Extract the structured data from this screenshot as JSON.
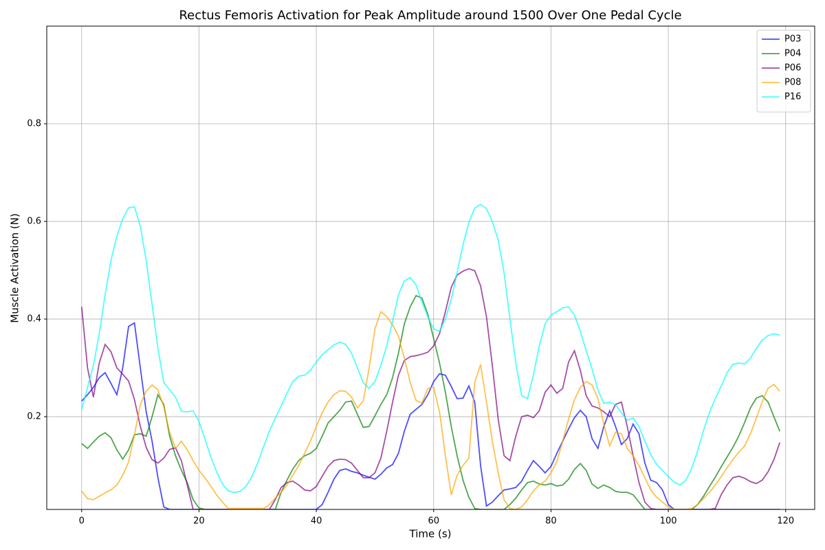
{
  "chart_data": {
    "type": "line",
    "title": "Rectus Femoris Activation for Peak Amplitude around 1500 Over One Pedal Cycle",
    "xlabel": "Time (s)",
    "ylabel": "Muscle Activation (N)",
    "xlim": [
      -5.95,
      124.95
    ],
    "ylim": [
      0.01,
      1.0
    ],
    "xticks": [
      0,
      20,
      40,
      60,
      80,
      100,
      120
    ],
    "yticks": [
      0.2,
      0.4,
      0.6,
      0.8
    ],
    "grid": true,
    "legend": "upper right",
    "line_alpha": 0.7,
    "x": [
      0,
      1,
      2,
      3,
      4,
      5,
      6,
      7,
      8,
      9,
      10,
      11,
      12,
      13,
      14,
      15,
      16,
      17,
      18,
      19,
      20,
      21,
      22,
      23,
      24,
      25,
      26,
      27,
      28,
      29,
      30,
      31,
      32,
      33,
      34,
      35,
      36,
      37,
      38,
      39,
      40,
      41,
      42,
      43,
      44,
      45,
      46,
      47,
      48,
      49,
      50,
      51,
      52,
      53,
      54,
      55,
      56,
      57,
      58,
      59,
      60,
      61,
      62,
      63,
      64,
      65,
      66,
      67,
      68,
      69,
      70,
      71,
      72,
      73,
      74,
      75,
      76,
      77,
      78,
      79,
      80,
      81,
      82,
      83,
      84,
      85,
      86,
      87,
      88,
      89,
      90,
      91,
      92,
      93,
      94,
      95,
      96,
      97,
      98,
      99,
      100,
      101,
      102,
      103,
      104,
      105,
      106,
      107,
      108,
      109,
      110,
      111,
      112,
      113,
      114,
      115,
      116,
      117,
      118,
      119
    ],
    "series": [
      {
        "name": "P03",
        "color": "#0000ff",
        "values": [
          0.232,
          0.245,
          0.26,
          0.28,
          0.29,
          0.268,
          0.245,
          0.3,
          0.385,
          0.392,
          0.3,
          0.21,
          0.15,
          0.075,
          0.015,
          0.01,
          0.01,
          0.01,
          0.01,
          0.01,
          0.01,
          0.01,
          0.01,
          0.01,
          0.01,
          0.01,
          0.01,
          0.01,
          0.01,
          0.01,
          0.01,
          0.01,
          0.01,
          0.01,
          0.01,
          0.01,
          0.01,
          0.01,
          0.01,
          0.01,
          0.01,
          0.02,
          0.045,
          0.072,
          0.09,
          0.093,
          0.088,
          0.085,
          0.08,
          0.076,
          0.072,
          0.082,
          0.095,
          0.102,
          0.125,
          0.17,
          0.205,
          0.215,
          0.225,
          0.245,
          0.272,
          0.288,
          0.285,
          0.262,
          0.237,
          0.238,
          0.263,
          0.23,
          0.1,
          0.017,
          0.025,
          0.038,
          0.05,
          0.052,
          0.055,
          0.068,
          0.09,
          0.11,
          0.098,
          0.085,
          0.098,
          0.125,
          0.15,
          0.175,
          0.198,
          0.213,
          0.2,
          0.155,
          0.135,
          0.18,
          0.212,
          0.18,
          0.143,
          0.155,
          0.185,
          0.165,
          0.105,
          0.07,
          0.065,
          0.05,
          0.02,
          0.01,
          0.01,
          0.01,
          0.01,
          0.01,
          0.01,
          0.01,
          0.01,
          0.01,
          0.01,
          0.01,
          0.01,
          0.01,
          0.01,
          0.01,
          0.01,
          0.01,
          0.01,
          0.01
        ]
      },
      {
        "name": "P04",
        "color": "#008000",
        "values": [
          0.145,
          0.135,
          0.148,
          0.16,
          0.167,
          0.157,
          0.132,
          0.113,
          0.132,
          0.163,
          0.165,
          0.16,
          0.2,
          0.245,
          0.225,
          0.16,
          0.12,
          0.09,
          0.065,
          0.03,
          0.013,
          0.01,
          0.01,
          0.01,
          0.01,
          0.01,
          0.01,
          0.01,
          0.01,
          0.01,
          0.01,
          0.01,
          0.01,
          0.01,
          0.045,
          0.07,
          0.093,
          0.11,
          0.12,
          0.125,
          0.135,
          0.16,
          0.187,
          0.2,
          0.213,
          0.23,
          0.232,
          0.205,
          0.178,
          0.18,
          0.202,
          0.225,
          0.245,
          0.28,
          0.33,
          0.39,
          0.425,
          0.448,
          0.443,
          0.41,
          0.36,
          0.31,
          0.25,
          0.18,
          0.12,
          0.07,
          0.035,
          0.012,
          0.01,
          0.01,
          0.01,
          0.01,
          0.01,
          0.02,
          0.033,
          0.05,
          0.065,
          0.068,
          0.062,
          0.06,
          0.063,
          0.058,
          0.06,
          0.072,
          0.092,
          0.104,
          0.09,
          0.062,
          0.053,
          0.06,
          0.055,
          0.047,
          0.045,
          0.045,
          0.04,
          0.025,
          0.01,
          0.01,
          0.01,
          0.01,
          0.01,
          0.01,
          0.01,
          0.01,
          0.01,
          0.02,
          0.037,
          0.057,
          0.076,
          0.097,
          0.117,
          0.137,
          0.16,
          0.188,
          0.218,
          0.238,
          0.243,
          0.23,
          0.2,
          0.17
        ]
      },
      {
        "name": "P06",
        "color": "#800080",
        "values": [
          0.425,
          0.3,
          0.24,
          0.31,
          0.348,
          0.333,
          0.3,
          0.287,
          0.273,
          0.235,
          0.18,
          0.137,
          0.112,
          0.105,
          0.115,
          0.133,
          0.136,
          0.11,
          0.06,
          0.01,
          0.01,
          0.01,
          0.01,
          0.01,
          0.01,
          0.01,
          0.01,
          0.01,
          0.01,
          0.01,
          0.01,
          0.01,
          0.01,
          0.03,
          0.055,
          0.065,
          0.068,
          0.06,
          0.05,
          0.048,
          0.057,
          0.078,
          0.098,
          0.11,
          0.113,
          0.112,
          0.105,
          0.09,
          0.075,
          0.075,
          0.085,
          0.115,
          0.17,
          0.23,
          0.285,
          0.315,
          0.323,
          0.325,
          0.328,
          0.332,
          0.345,
          0.37,
          0.415,
          0.465,
          0.49,
          0.498,
          0.503,
          0.499,
          0.468,
          0.405,
          0.305,
          0.195,
          0.12,
          0.11,
          0.16,
          0.2,
          0.203,
          0.198,
          0.212,
          0.25,
          0.265,
          0.248,
          0.258,
          0.312,
          0.335,
          0.295,
          0.243,
          0.222,
          0.218,
          0.21,
          0.2,
          0.225,
          0.23,
          0.18,
          0.12,
          0.065,
          0.025,
          0.012,
          0.01,
          0.01,
          0.01,
          0.01,
          0.01,
          0.01,
          0.01,
          0.01,
          0.01,
          0.01,
          0.012,
          0.04,
          0.06,
          0.075,
          0.078,
          0.074,
          0.067,
          0.063,
          0.07,
          0.087,
          0.112,
          0.147
        ]
      },
      {
        "name": "P08",
        "color": "#ffa500",
        "values": [
          0.048,
          0.032,
          0.03,
          0.037,
          0.044,
          0.05,
          0.06,
          0.08,
          0.107,
          0.163,
          0.225,
          0.252,
          0.265,
          0.255,
          0.22,
          0.168,
          0.135,
          0.15,
          0.132,
          0.11,
          0.09,
          0.075,
          0.058,
          0.04,
          0.025,
          0.012,
          0.012,
          0.012,
          0.012,
          0.012,
          0.012,
          0.012,
          0.02,
          0.033,
          0.045,
          0.06,
          0.08,
          0.1,
          0.125,
          0.15,
          0.18,
          0.208,
          0.23,
          0.245,
          0.253,
          0.252,
          0.24,
          0.218,
          0.232,
          0.3,
          0.38,
          0.415,
          0.405,
          0.388,
          0.365,
          0.32,
          0.27,
          0.233,
          0.228,
          0.258,
          0.26,
          0.21,
          0.12,
          0.04,
          0.08,
          0.1,
          0.115,
          0.27,
          0.307,
          0.23,
          0.15,
          0.085,
          0.03,
          0.012,
          0.01,
          0.015,
          0.03,
          0.048,
          0.06,
          0.068,
          0.085,
          0.108,
          0.15,
          0.195,
          0.235,
          0.26,
          0.272,
          0.265,
          0.237,
          0.185,
          0.14,
          0.168,
          0.165,
          0.135,
          0.12,
          0.1,
          0.075,
          0.05,
          0.035,
          0.025,
          0.015,
          0.01,
          0.01,
          0.01,
          0.012,
          0.02,
          0.032,
          0.045,
          0.06,
          0.077,
          0.095,
          0.112,
          0.127,
          0.14,
          0.165,
          0.197,
          0.23,
          0.258,
          0.266,
          0.252
        ]
      },
      {
        "name": "P16",
        "color": "#00ffff",
        "values": [
          0.215,
          0.26,
          0.305,
          0.37,
          0.45,
          0.52,
          0.57,
          0.605,
          0.628,
          0.63,
          0.59,
          0.52,
          0.43,
          0.34,
          0.27,
          0.255,
          0.24,
          0.211,
          0.21,
          0.212,
          0.19,
          0.155,
          0.118,
          0.087,
          0.062,
          0.048,
          0.045,
          0.047,
          0.057,
          0.077,
          0.105,
          0.138,
          0.17,
          0.197,
          0.222,
          0.248,
          0.272,
          0.283,
          0.285,
          0.295,
          0.312,
          0.327,
          0.337,
          0.347,
          0.353,
          0.348,
          0.33,
          0.3,
          0.27,
          0.258,
          0.272,
          0.305,
          0.345,
          0.395,
          0.45,
          0.478,
          0.485,
          0.47,
          0.435,
          0.405,
          0.38,
          0.375,
          0.4,
          0.44,
          0.495,
          0.552,
          0.598,
          0.627,
          0.635,
          0.626,
          0.6,
          0.562,
          0.495,
          0.4,
          0.31,
          0.243,
          0.237,
          0.285,
          0.345,
          0.39,
          0.408,
          0.415,
          0.423,
          0.425,
          0.408,
          0.375,
          0.335,
          0.298,
          0.255,
          0.227,
          0.23,
          0.225,
          0.208,
          0.193,
          0.197,
          0.18,
          0.15,
          0.122,
          0.103,
          0.09,
          0.077,
          0.066,
          0.06,
          0.07,
          0.095,
          0.13,
          0.172,
          0.208,
          0.237,
          0.262,
          0.29,
          0.307,
          0.31,
          0.308,
          0.32,
          0.34,
          0.357,
          0.366,
          0.37,
          0.367
        ]
      }
    ]
  }
}
